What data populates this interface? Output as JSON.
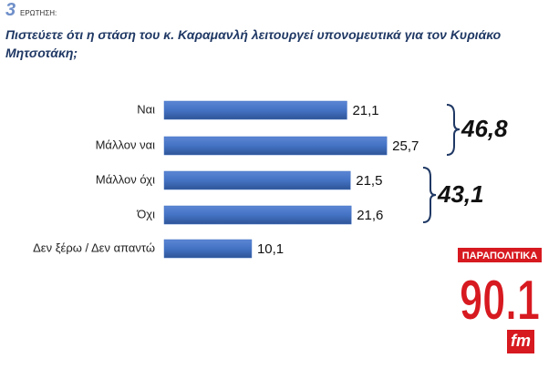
{
  "header": {
    "number": "3",
    "label": "ΕΡΩΤΗΣΗ:"
  },
  "chart_data": {
    "type": "bar",
    "orientation": "horizontal",
    "title": "Πιστεύετε ότι η στάση του κ. Καραμανλή λειτουργεί υπονομευτικά για τον Κυριάκο Μητσοτάκη;",
    "categories": [
      "Ναι",
      "Μάλλον ναι",
      "Μάλλον όχι",
      "Όχι",
      "Δεν ξέρω / Δεν απαντώ"
    ],
    "values": [
      21.1,
      25.7,
      21.5,
      21.6,
      10.1
    ],
    "value_labels": [
      "21,1",
      "25,7",
      "21,5",
      "21,6",
      "10,1"
    ],
    "color": "#4472c4",
    "annotations": [
      {
        "value": 46.8,
        "label": "46,8"
      },
      {
        "value": 43.1,
        "label": "43,1"
      }
    ]
  },
  "logo": {
    "top": "ΠΑΡΑΠΟΛΙΤΙΚΑ",
    "main": "90.1",
    "sub": "fm"
  }
}
